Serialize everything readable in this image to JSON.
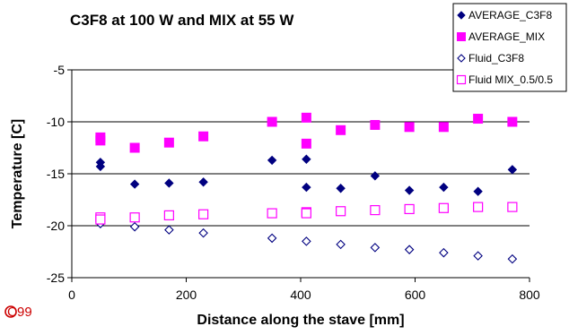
{
  "chart_data": {
    "type": "scatter",
    "title": "C3F8 at 100 W and MIX at 55 W",
    "xlabel": "Distance along the stave [mm]",
    "ylabel": "Temperature [C]",
    "xlim": [
      0,
      800
    ],
    "ylim": [
      -25,
      -5
    ],
    "xticks": [
      "0",
      "200",
      "400",
      "600",
      "800"
    ],
    "yticks": [
      "-5",
      "-10",
      "-15",
      "-20",
      "-25"
    ],
    "grid": "horizontal",
    "legend_position": "top-right",
    "series": [
      {
        "name": "AVERAGE_C3F8",
        "marker": "filled-diamond",
        "color": "#000080",
        "x": [
          50,
          50,
          110,
          170,
          230,
          350,
          410,
          410,
          470,
          530,
          590,
          650,
          710,
          770
        ],
        "y": [
          -13.9,
          -14.3,
          -16.0,
          -15.9,
          -15.8,
          -13.7,
          -13.6,
          -16.3,
          -16.4,
          -15.2,
          -16.6,
          -16.3,
          -16.7,
          -14.6
        ]
      },
      {
        "name": "AVERAGE_MIX",
        "marker": "filled-square",
        "color": "#ff00ff",
        "x": [
          50,
          50,
          110,
          170,
          230,
          350,
          410,
          410,
          470,
          530,
          590,
          650,
          710,
          770
        ],
        "y": [
          -11.5,
          -11.8,
          -12.5,
          -12.0,
          -11.4,
          -10.0,
          -9.6,
          -12.1,
          -10.8,
          -10.3,
          -10.5,
          -10.5,
          -9.7,
          -10.0
        ]
      },
      {
        "name": "Fluid_C3F8",
        "marker": "open-diamond",
        "color": "#000080",
        "x": [
          50,
          110,
          170,
          230,
          350,
          410,
          470,
          530,
          590,
          650,
          710,
          770
        ],
        "y": [
          -19.8,
          -20.1,
          -20.4,
          -20.7,
          -21.2,
          -21.5,
          -21.8,
          -22.1,
          -22.3,
          -22.6,
          -22.9,
          -23.2
        ]
      },
      {
        "name": "Fluid MIX_0.5/0.5",
        "marker": "open-square",
        "color": "#ff00ff",
        "x": [
          50,
          50,
          110,
          170,
          230,
          350,
          410,
          410,
          470,
          530,
          590,
          650,
          710,
          770
        ],
        "y": [
          -19.2,
          -19.4,
          -19.2,
          -19.0,
          -18.9,
          -18.8,
          -18.7,
          -18.8,
          -18.6,
          -18.5,
          -18.4,
          -18.3,
          -18.2,
          -18.2
        ]
      }
    ]
  },
  "footer_mark": "99"
}
